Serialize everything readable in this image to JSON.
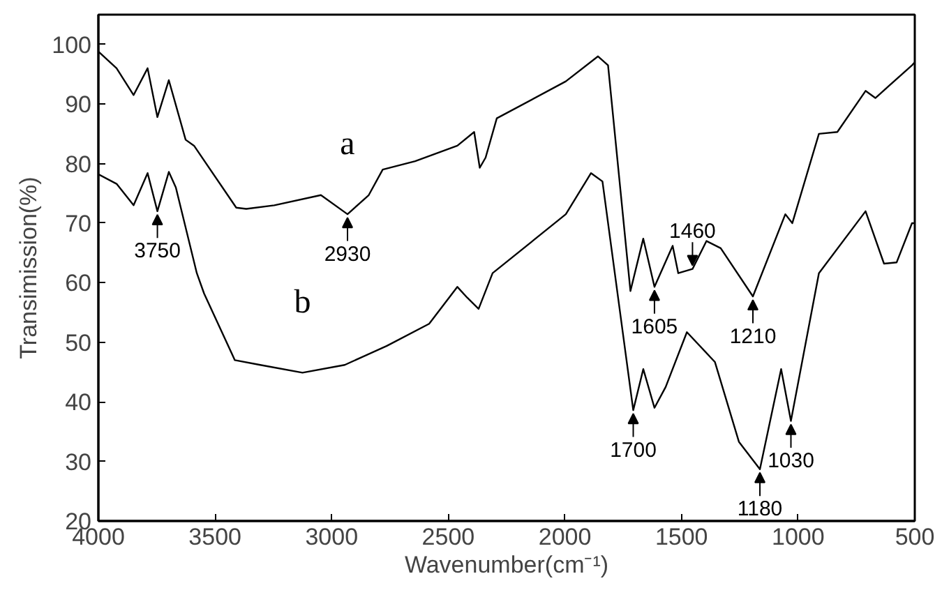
{
  "chart_data": {
    "type": "line",
    "xlabel": "Wavenumber(cm⁻¹)",
    "ylabel": "Transimission(%)",
    "xlim": [
      4000,
      500
    ],
    "ylim": [
      20,
      105
    ],
    "xticks": [
      4000,
      3500,
      3000,
      2500,
      2000,
      1500,
      1000,
      500
    ],
    "yticks": [
      20,
      30,
      40,
      50,
      60,
      70,
      80,
      90,
      100
    ],
    "grid": false,
    "legend": false,
    "marker": "none",
    "line_style": "solid",
    "series": [
      {
        "name": "a",
        "color": "#000000",
        "x": [
          4000,
          3922,
          3849,
          3789,
          3747,
          3698,
          3626,
          3590,
          3409,
          3366,
          3246,
          3046,
          2932,
          2841,
          2781,
          2642,
          2461,
          2389,
          2365,
          2340,
          2292,
          1996,
          1858,
          1815,
          1719,
          1664,
          1616,
          1538,
          1514,
          1453,
          1393,
          1332,
          1194,
          1055,
          1025,
          911,
          832,
          711,
          669,
          512,
          500
        ],
        "values": [
          98.8,
          96,
          91.5,
          96,
          87.8,
          94,
          84,
          83,
          72.6,
          72.4,
          73,
          74.7,
          71.5,
          74.7,
          79,
          80.4,
          83,
          85.3,
          79.3,
          81,
          87.6,
          93.8,
          98,
          96.5,
          58.6,
          67.4,
          59.3,
          66.2,
          61.6,
          62.3,
          67,
          65.8,
          57.7,
          71.5,
          70,
          85,
          85.3,
          92.2,
          91,
          96.5,
          97
        ]
      },
      {
        "name": "b",
        "color": "#000000",
        "x": [
          4000,
          3922,
          3849,
          3789,
          3747,
          3698,
          3668,
          3578,
          3547,
          3415,
          3306,
          3125,
          2944,
          2763,
          2582,
          2461,
          2419,
          2370,
          2310,
          1996,
          1888,
          1839,
          1707,
          1664,
          1616,
          1568,
          1477,
          1357,
          1254,
          1164,
          1073,
          1031,
          911,
          711,
          632,
          578,
          512,
          500
        ],
        "values": [
          78.2,
          76.6,
          73,
          78.4,
          72,
          78.6,
          76,
          61.6,
          58.2,
          47,
          46.2,
          44.9,
          46.2,
          49.4,
          53.1,
          59.3,
          57.5,
          55.6,
          61.6,
          71.5,
          78.4,
          77,
          38.6,
          45.5,
          39,
          42.5,
          51.7,
          46.7,
          33.3,
          28.7,
          45.5,
          36.8,
          61.6,
          72,
          63.2,
          63.4,
          70,
          70
        ]
      }
    ],
    "annotations": [
      {
        "text": "3750",
        "x": 3747,
        "y": 72
      },
      {
        "text": "2930",
        "x": 2932,
        "y": 71.5
      },
      {
        "text": "1605",
        "x": 1616,
        "y": 59.3
      },
      {
        "text": "1460",
        "x": 1453,
        "y": 62.3
      },
      {
        "text": "1210",
        "x": 1194,
        "y": 57.7
      },
      {
        "text": "1700",
        "x": 1707,
        "y": 38.6
      },
      {
        "text": "1180",
        "x": 1164,
        "y": 28.7
      },
      {
        "text": "1030",
        "x": 1031,
        "y": 36.8
      }
    ]
  }
}
